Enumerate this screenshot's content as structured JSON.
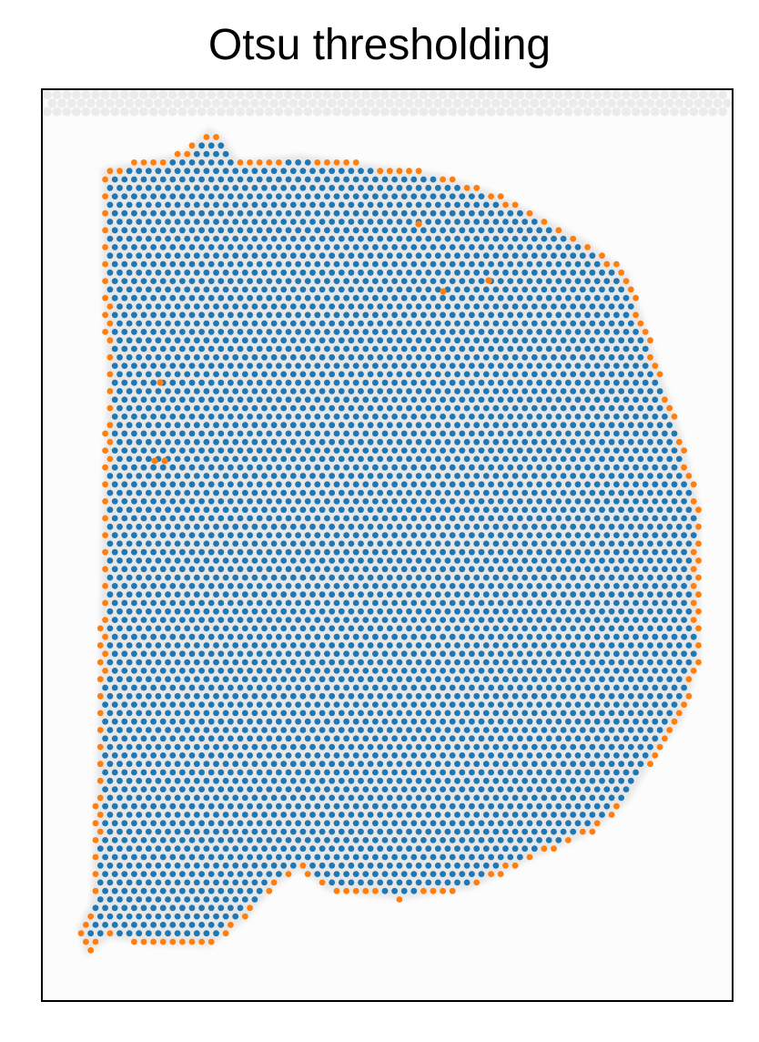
{
  "chart_data": {
    "type": "scatter",
    "title": "Otsu thresholding",
    "xlabel": "",
    "ylabel": "",
    "ticks": "none",
    "grid": false,
    "legend": "none",
    "background_image": "grayscale tissue section",
    "series": [
      {
        "role": "in_tissue",
        "color": "#1f77b4",
        "points": "hexagonal lattice of spots filling the tissue section"
      },
      {
        "role": "boundary",
        "color": "#ff7f0e",
        "points": "spots along the tissue border"
      },
      {
        "role": "background",
        "color": "#d9d9d9",
        "points": "faint spots outside the tissue"
      }
    ]
  }
}
